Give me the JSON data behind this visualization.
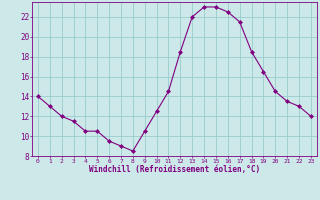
{
  "x": [
    0,
    1,
    2,
    3,
    4,
    5,
    6,
    7,
    8,
    9,
    10,
    11,
    12,
    13,
    14,
    15,
    16,
    17,
    18,
    19,
    20,
    21,
    22,
    23
  ],
  "y": [
    14,
    13,
    12,
    11.5,
    10.5,
    10.5,
    9.5,
    9,
    8.5,
    10.5,
    12.5,
    14.5,
    18.5,
    22,
    23,
    23,
    22.5,
    21.5,
    18.5,
    16.5,
    14.5,
    13.5,
    13,
    12
  ],
  "line_color": "#800080",
  "marker": "D",
  "marker_size": 2,
  "bg_color": "#cce8e8",
  "grid_color": "#99cccc",
  "xlabel": "Windchill (Refroidissement éolien,°C)",
  "xlabel_color": "#800080",
  "tick_color": "#800080",
  "ylim": [
    8,
    23.5
  ],
  "yticks": [
    8,
    10,
    12,
    14,
    16,
    18,
    20,
    22
  ],
  "xlim": [
    -0.5,
    23.5
  ],
  "xticks": [
    0,
    1,
    2,
    3,
    4,
    5,
    6,
    7,
    8,
    9,
    10,
    11,
    12,
    13,
    14,
    15,
    16,
    17,
    18,
    19,
    20,
    21,
    22,
    23
  ]
}
